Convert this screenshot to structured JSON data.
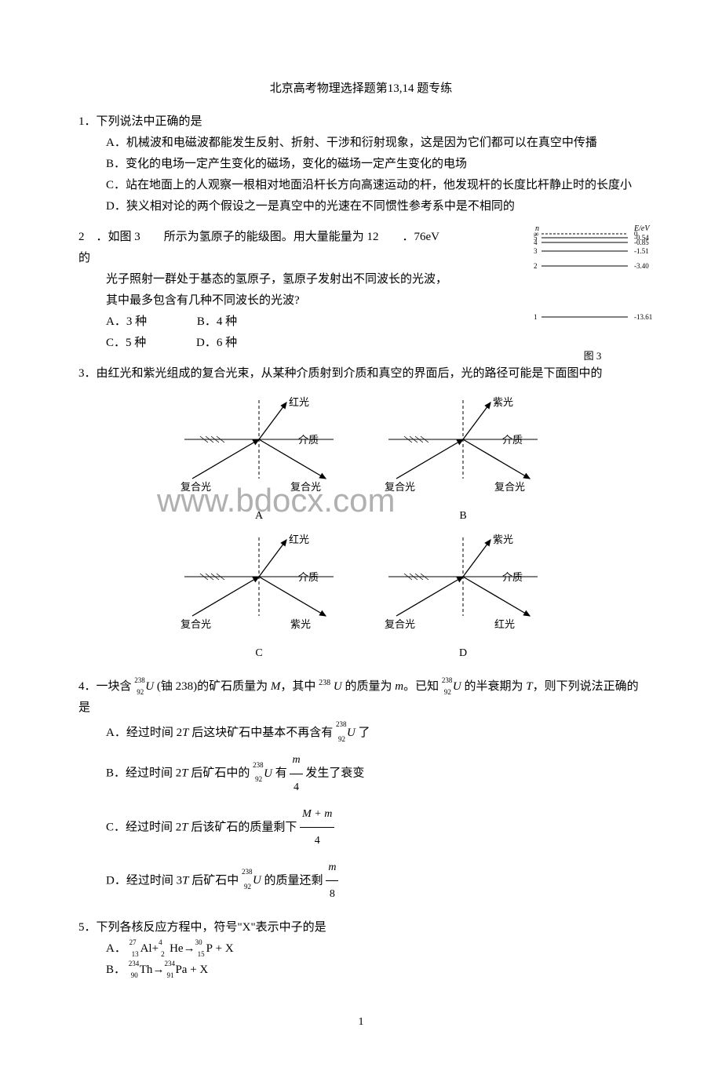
{
  "title": "北京高考物理选择题第13,14 题专练",
  "q1": {
    "num": "1．",
    "stem": "下列说法中正确的是",
    "A": "A．机械波和电磁波都能发生反射、折射、干涉和衍射现象，这是因为它们都可以在真空中传播",
    "B": "B．变化的电场一定产生变化的磁场，变化的磁场一定产生变化的电场",
    "C": "C．站在地面上的人观察一根相对地面沿杆长方向高速运动的杆，他发现杆的长度比杆静止时的长度小",
    "D": "D．狭义相对论的两个假设之一是真空中的光速在不同惯性参考系中是不相同的"
  },
  "q2": {
    "num": "2　．",
    "stem1": "如图 3　　所示为氢原子的能级图。用大量能量为 12　　．76eV　　的",
    "stem2": "光子照射一群处于基态的氢原子，氢原子发射出不同波长的光波，其中最多包含有几种不同波长的光波?",
    "A": "A．3 种",
    "B": "B．4 种",
    "C": "C．5 种",
    "D": "D．6 种",
    "diagram": {
      "ylabel": "E/eV",
      "levels": [
        {
          "n": "∞",
          "e": "0"
        },
        {
          "n": "5",
          "e": "-0.54"
        },
        {
          "n": "4",
          "e": "-0.85"
        },
        {
          "n": "3",
          "e": "-1.51"
        },
        {
          "n": "2",
          "e": "-3.40"
        },
        {
          "n": "1",
          "e": "-13.61"
        }
      ],
      "caption": "图 3"
    }
  },
  "q3": {
    "num": "3．",
    "stem": "由红光和紫光组成的复合光束，从某种介质射到介质和真空的界面后，光的路径可能是下面图中的",
    "labels": {
      "red": "红光",
      "violet": "紫光",
      "medium": "介质",
      "composite": "复合光"
    },
    "diagrams": [
      {
        "id": "A",
        "up": "红光",
        "right": "复合光"
      },
      {
        "id": "B",
        "up": "紫光",
        "right": "复合光"
      },
      {
        "id": "C",
        "up": "红光",
        "right": "紫光"
      },
      {
        "id": "D",
        "up": "紫光",
        "right": "红光"
      }
    ],
    "watermark": "www.bdocx.com"
  },
  "q4": {
    "num": "4．",
    "stem_a": "一块含 ",
    "stem_b": " (铀 238)的矿石质量为 ",
    "stem_c": "，其中 ",
    "stem_d": " 的质量为 ",
    "stem_e": "。已知 ",
    "stem_f": " 的半衰期为 ",
    "stem_g": "，则下列说法正确的是",
    "M": "M",
    "m": "m",
    "T": "T",
    "U238": {
      "mass": "238",
      "atomic": "92",
      "sym": "U"
    },
    "A_a": "A．经过时间 2",
    "A_b": " 后这块矿石中基本不再含有 ",
    "A_c": " 了",
    "B_a": "B．经过时间 2",
    "B_b": " 后矿石中的 ",
    "B_c": " 有 ",
    "B_d": " 发生了衰变",
    "B_frac": {
      "num": "m",
      "den": "4"
    },
    "C_a": "C．经过时间 2",
    "C_b": " 后该矿石的质量剩下 ",
    "C_frac": {
      "num": "M + m",
      "den": "4"
    },
    "D_a": "D．经过时间 3",
    "D_b": " 后矿石中 ",
    "D_c": " 的质量还剩 ",
    "D_frac": {
      "num": "m",
      "den": "8"
    }
  },
  "q5": {
    "num": "5．",
    "stem": "下列各核反应方程中，符号\"X\"表示中子的是",
    "A_pre": "A．",
    "A_eq": {
      "r1": {
        "m": "27",
        "a": "13",
        "s": "Al"
      },
      "plus1": "+",
      "r2": {
        "m": "4",
        "a": "2",
        "s": "He"
      },
      "arrow": "→",
      "p1": {
        "m": "30",
        "a": "15",
        "s": "P"
      },
      "plus2": " + X"
    },
    "B_pre": "B．",
    "B_eq": {
      "r1": {
        "m": "234",
        "a": "90",
        "s": "Th"
      },
      "arrow": "→",
      "p1": {
        "m": "234",
        "a": "91",
        "s": "Pa"
      },
      "plus": " + X"
    }
  },
  "page_number": "1",
  "colors": {
    "text": "#000000",
    "bg": "#ffffff",
    "watermark": "#b0b0b0",
    "diagram_line": "#000000"
  }
}
